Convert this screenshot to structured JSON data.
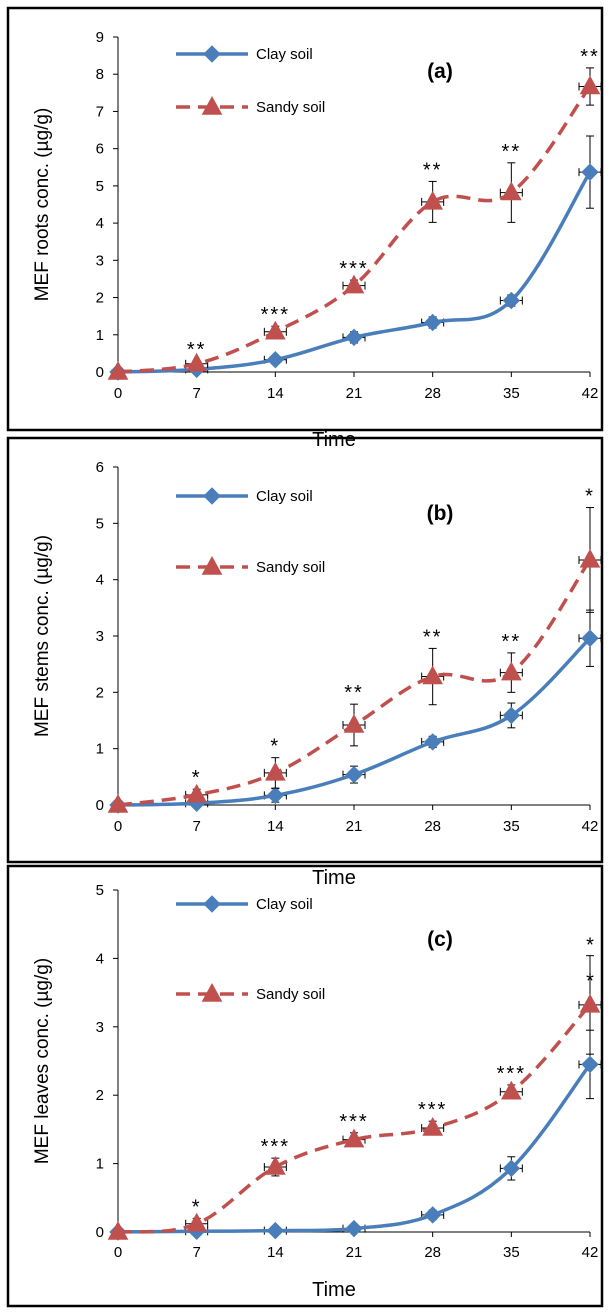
{
  "chart_data": [
    {
      "type": "line",
      "panel_label": "(a)",
      "xlabel": "Time",
      "ylabel": "MEF roots conc. (µg/g)",
      "x": [
        0,
        7,
        14,
        21,
        28,
        35,
        42
      ],
      "xlim": [
        0,
        42
      ],
      "ylim": [
        0,
        9
      ],
      "yticks": [
        0,
        1,
        2,
        3,
        4,
        5,
        6,
        7,
        8,
        9
      ],
      "grid": false,
      "legend_position": "top-left",
      "series": [
        {
          "name": "Clay soil",
          "color": "#4a7ebb",
          "dash": "solid",
          "marker": "diamond",
          "values": [
            0,
            0.07,
            0.33,
            0.93,
            1.33,
            1.92,
            5.37
          ],
          "yerr": [
            0,
            0.05,
            0.1,
            0.15,
            0.15,
            0.15,
            0.97
          ]
        },
        {
          "name": "Sandy soil",
          "color": "#c0504d",
          "dash": "dashed",
          "marker": "triangle",
          "values": [
            0,
            0.22,
            1.08,
            2.32,
            4.57,
            4.82,
            7.67
          ],
          "yerr": [
            0,
            0.08,
            0.15,
            0.15,
            0.55,
            0.8,
            0.5
          ]
        }
      ],
      "significance": [
        "",
        "**",
        "***",
        "***",
        "**",
        "**",
        "**"
      ]
    },
    {
      "type": "line",
      "panel_label": "(b)",
      "xlabel": "Time",
      "ylabel": "MEF stems conc. (µg/g)",
      "x": [
        0,
        7,
        14,
        21,
        28,
        35,
        42
      ],
      "xlim": [
        0,
        42
      ],
      "ylim": [
        0,
        6
      ],
      "yticks": [
        0,
        1,
        2,
        3,
        4,
        5,
        6
      ],
      "grid": false,
      "legend_position": "top-left",
      "series": [
        {
          "name": "Clay soil",
          "color": "#4a7ebb",
          "dash": "solid",
          "marker": "diamond",
          "values": [
            0,
            0.03,
            0.17,
            0.54,
            1.12,
            1.59,
            2.96
          ],
          "yerr": [
            0,
            0.04,
            0.12,
            0.15,
            0.1,
            0.22,
            0.5
          ]
        },
        {
          "name": "Sandy soil",
          "color": "#c0504d",
          "dash": "dashed",
          "marker": "triangle",
          "values": [
            0,
            0.18,
            0.57,
            1.42,
            2.28,
            2.35,
            4.35
          ],
          "yerr": [
            0,
            0.1,
            0.27,
            0.37,
            0.5,
            0.35,
            0.93
          ]
        }
      ],
      "significance": [
        "",
        "*",
        "*",
        "**",
        "**",
        "**",
        "*"
      ]
    },
    {
      "type": "line",
      "panel_label": "(c)",
      "xlabel": "Time",
      "ylabel": "MEF leaves conc. (µg/g)",
      "x": [
        0,
        7,
        14,
        21,
        28,
        35,
        42
      ],
      "xlim": [
        0,
        42
      ],
      "ylim": [
        0,
        5
      ],
      "yticks": [
        0,
        1,
        2,
        3,
        4,
        5
      ],
      "grid": false,
      "legend_position": "top-left",
      "series": [
        {
          "name": "Clay soil",
          "color": "#4a7ebb",
          "dash": "solid",
          "marker": "diamond",
          "values": [
            0,
            0.01,
            0.02,
            0.05,
            0.25,
            0.93,
            2.45
          ],
          "yerr": [
            0,
            0.02,
            0.03,
            0.04,
            0.07,
            0.17,
            0.5
          ]
        },
        {
          "name": "Sandy soil",
          "color": "#c0504d",
          "dash": "dashed",
          "marker": "triangle",
          "values": [
            0,
            0.12,
            0.95,
            1.35,
            1.52,
            2.05,
            3.32
          ],
          "yerr": [
            0,
            0.08,
            0.13,
            0.1,
            0.1,
            0.1,
            0.72
          ]
        }
      ],
      "significance": [
        "",
        "*",
        "***",
        "***",
        "***",
        "***",
        "**"
      ]
    }
  ]
}
